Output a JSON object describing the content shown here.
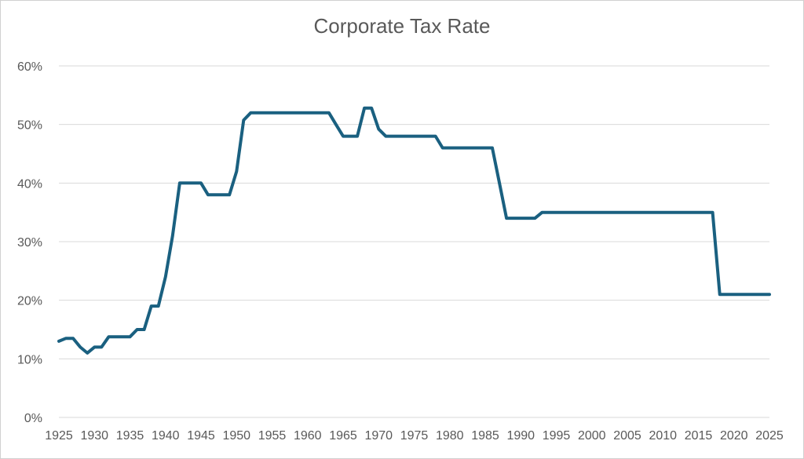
{
  "chart_data": {
    "type": "line",
    "title": "Corporate Tax Rate",
    "xlabel": "",
    "ylabel": "",
    "xlim": [
      1925,
      2025
    ],
    "ylim": [
      0,
      0.6
    ],
    "grid": true,
    "line_color": "#1a6080",
    "y_ticks": [
      {
        "value": 0,
        "label": "0%"
      },
      {
        "value": 0.1,
        "label": "10%"
      },
      {
        "value": 0.2,
        "label": "20%"
      },
      {
        "value": 0.3,
        "label": "30%"
      },
      {
        "value": 0.4,
        "label": "40%"
      },
      {
        "value": 0.5,
        "label": "50%"
      },
      {
        "value": 0.6,
        "label": "60%"
      }
    ],
    "x_ticks": [
      "1925",
      "1930",
      "1935",
      "1940",
      "1945",
      "1950",
      "1955",
      "1960",
      "1965",
      "1970",
      "1975",
      "1980",
      "1985",
      "1990",
      "1995",
      "2000",
      "2005",
      "2010",
      "2015",
      "2020",
      "2025"
    ],
    "x": [
      1925,
      1926,
      1927,
      1928,
      1929,
      1930,
      1931,
      1932,
      1933,
      1934,
      1935,
      1936,
      1937,
      1938,
      1939,
      1940,
      1941,
      1942,
      1943,
      1944,
      1945,
      1946,
      1947,
      1948,
      1949,
      1950,
      1951,
      1952,
      1953,
      1954,
      1955,
      1956,
      1957,
      1958,
      1959,
      1960,
      1961,
      1962,
      1963,
      1964,
      1965,
      1966,
      1967,
      1968,
      1969,
      1970,
      1971,
      1972,
      1973,
      1974,
      1975,
      1976,
      1977,
      1978,
      1979,
      1980,
      1981,
      1982,
      1983,
      1984,
      1985,
      1986,
      1987,
      1988,
      1989,
      1990,
      1991,
      1992,
      1993,
      1994,
      1995,
      1996,
      1997,
      1998,
      1999,
      2000,
      2001,
      2002,
      2003,
      2004,
      2005,
      2006,
      2007,
      2008,
      2009,
      2010,
      2011,
      2012,
      2013,
      2014,
      2015,
      2016,
      2017,
      2018,
      2019,
      2020,
      2021,
      2022,
      2023,
      2024,
      2025
    ],
    "y": [
      0.13,
      0.135,
      0.135,
      0.12,
      0.11,
      0.12,
      0.12,
      0.1375,
      0.1375,
      0.1375,
      0.1375,
      0.15,
      0.15,
      0.19,
      0.19,
      0.24,
      0.31,
      0.4,
      0.4,
      0.4,
      0.4,
      0.38,
      0.38,
      0.38,
      0.38,
      0.42,
      0.5075,
      0.52,
      0.52,
      0.52,
      0.52,
      0.52,
      0.52,
      0.52,
      0.52,
      0.52,
      0.52,
      0.52,
      0.52,
      0.5,
      0.48,
      0.48,
      0.48,
      0.528,
      0.528,
      0.492,
      0.48,
      0.48,
      0.48,
      0.48,
      0.48,
      0.48,
      0.48,
      0.48,
      0.46,
      0.46,
      0.46,
      0.46,
      0.46,
      0.46,
      0.46,
      0.46,
      0.4,
      0.34,
      0.34,
      0.34,
      0.34,
      0.34,
      0.35,
      0.35,
      0.35,
      0.35,
      0.35,
      0.35,
      0.35,
      0.35,
      0.35,
      0.35,
      0.35,
      0.35,
      0.35,
      0.35,
      0.35,
      0.35,
      0.35,
      0.35,
      0.35,
      0.35,
      0.35,
      0.35,
      0.35,
      0.35,
      0.35,
      0.21,
      0.21,
      0.21,
      0.21,
      0.21,
      0.21,
      0.21,
      0.21
    ]
  }
}
